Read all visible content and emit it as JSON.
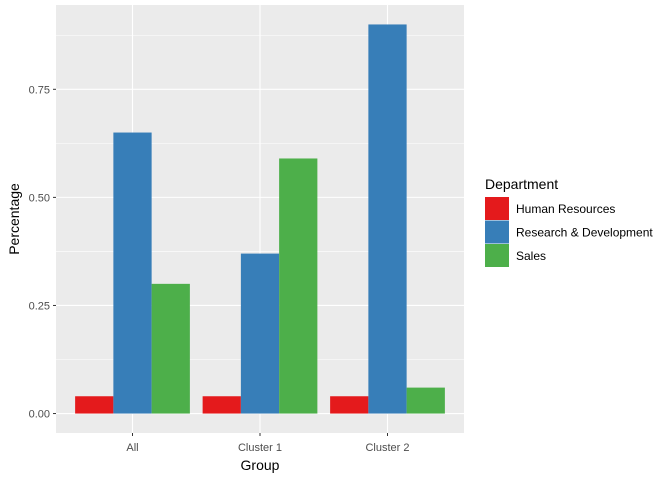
{
  "chart_data": {
    "type": "bar",
    "categories": [
      "All",
      "Cluster 1",
      "Cluster 2"
    ],
    "series": [
      {
        "name": "Human Resources",
        "values": [
          0.04,
          0.04,
          0.04
        ],
        "color": "#e41a1c"
      },
      {
        "name": "Research & Development",
        "values": [
          0.65,
          0.37,
          0.9
        ],
        "color": "#377eb8"
      },
      {
        "name": "Sales",
        "values": [
          0.3,
          0.59,
          0.06
        ],
        "color": "#4daf4a"
      }
    ],
    "xlabel": "Group",
    "ylabel": "Percentage",
    "ylim": [
      -0.045,
      0.945
    ],
    "yticks": [
      0.0,
      0.25,
      0.5,
      0.75
    ],
    "ytick_labels": [
      "0.00",
      "0.25",
      "0.50",
      "0.75"
    ],
    "legend_title": "Department",
    "legend_position": "right",
    "grid": true,
    "panel_background": "#ebebeb",
    "grid_color": "#ffffff"
  }
}
